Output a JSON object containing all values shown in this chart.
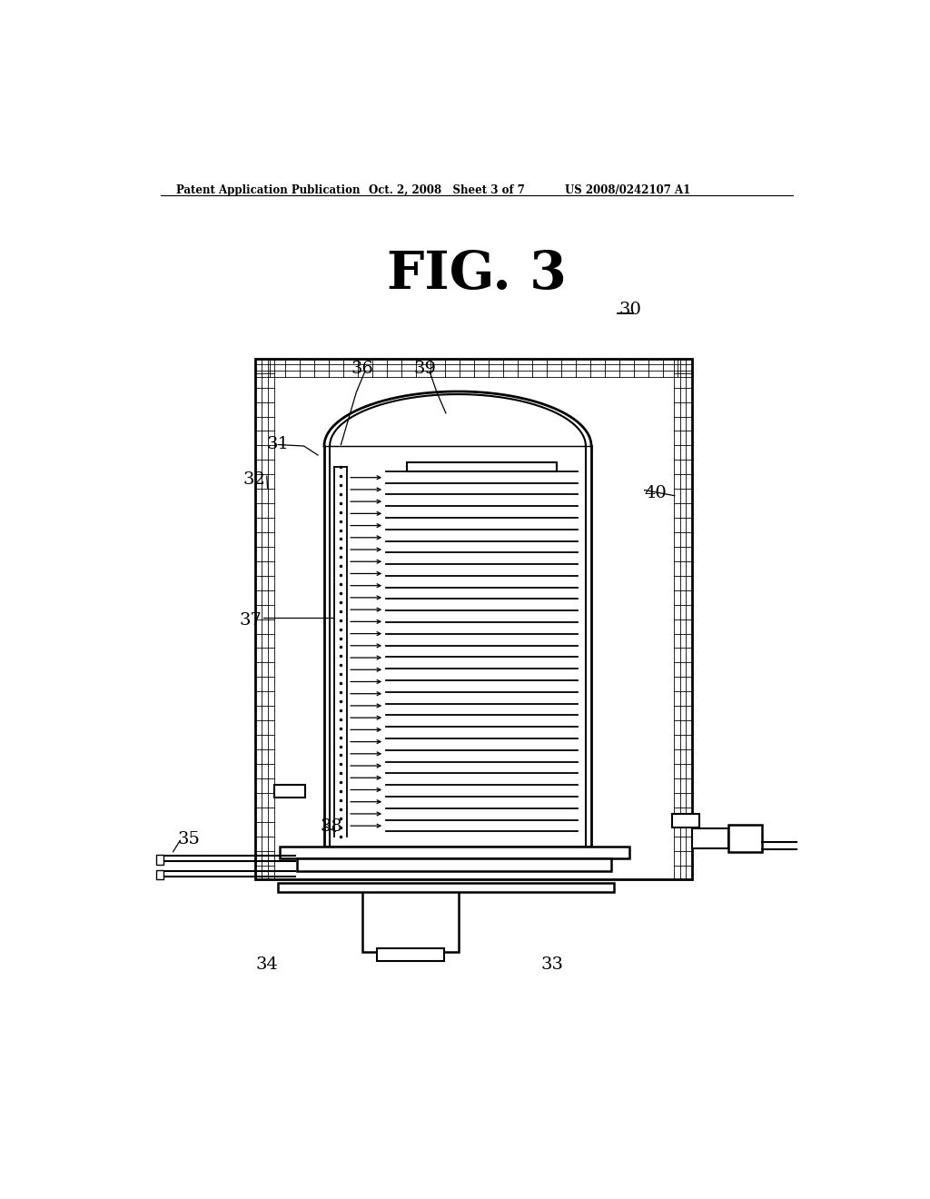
{
  "header_left": "Patent Application Publication",
  "header_center": "Oct. 2, 2008   Sheet 3 of 7",
  "header_right": "US 2008/0242107 A1",
  "title": "FIG. 3",
  "label_30": "30",
  "label_31": "31",
  "label_32": "32",
  "label_33": "33",
  "label_34": "34",
  "label_35": "35",
  "label_36": "36",
  "label_37": "37",
  "label_38": "38",
  "label_39": "39",
  "label_40": "40",
  "bg_color": "#ffffff",
  "line_color": "#000000"
}
